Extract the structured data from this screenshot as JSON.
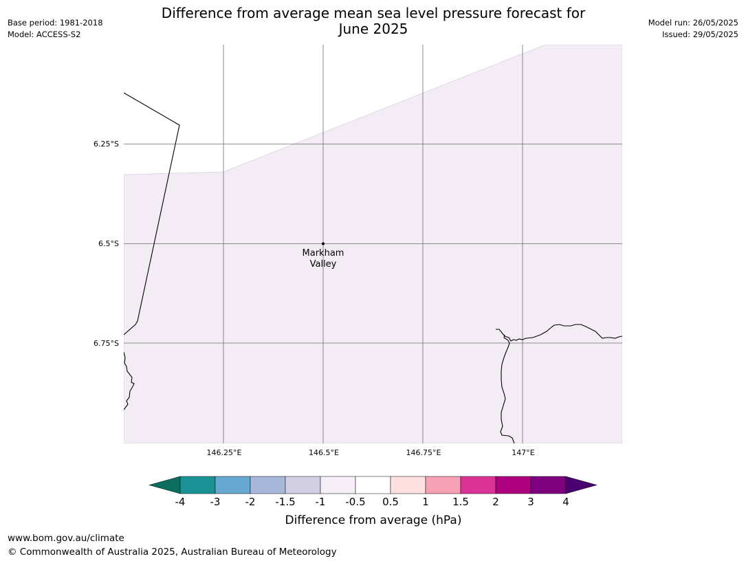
{
  "header": {
    "title_line1": "Difference from average mean sea level pressure forecast for",
    "title_line2": "June 2025",
    "base_period": "Base period: 1981-2018",
    "model": "Model: ACCESS-S2",
    "model_run": "Model run: 26/05/2025",
    "issued": "Issued: 29/05/2025"
  },
  "map": {
    "lat_labels": [
      "6.25°S",
      "6.5°S",
      "6.75°S"
    ],
    "lon_labels": [
      "146.25°E",
      "146.5°E",
      "146.75°E",
      "147°E"
    ],
    "location": {
      "name_line1": "Markham",
      "name_line2": "Valley",
      "lon": 146.5,
      "lat": -6.5
    },
    "fill_color": "#f3ecf5",
    "gridline_color": "#555555",
    "coastline_color": "#000000"
  },
  "colorbar": {
    "label": "Difference from average (hPa)",
    "tick_labels": [
      "-4",
      "-3",
      "-2",
      "-1.5",
      "-1",
      "-0.5",
      "0.5",
      "1",
      "1.5",
      "2",
      "3",
      "4"
    ],
    "extend_low_color": "#0b6e5f",
    "extend_high_color": "#4b0070",
    "colors": [
      "#1a9296",
      "#66a8d0",
      "#a8b8db",
      "#d3d0e5",
      "#f5eef7",
      "#ffffff",
      "#fde0df",
      "#f7a0b6",
      "#dc3396",
      "#ac007f",
      "#7f007f"
    ]
  },
  "footer": {
    "website": "www.bom.gov.au/climate",
    "copyright": "© Commonwealth of Australia 2025, Australian Bureau of Meteorology"
  }
}
